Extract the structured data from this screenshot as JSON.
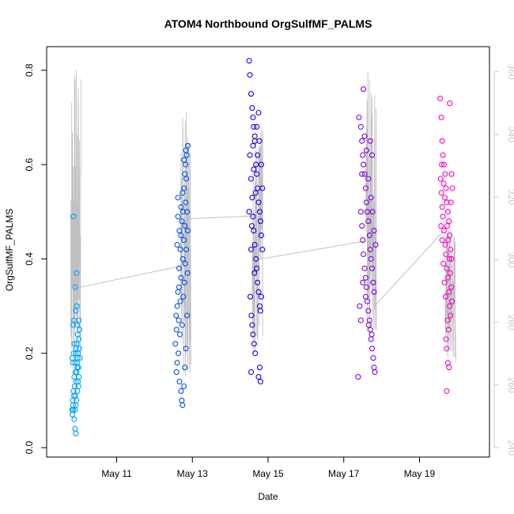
{
  "chart_data": {
    "type": "scatter",
    "title": "ATOM4 Northbound OrgSulfMF_PALMS",
    "xlabel": "Date",
    "ylabel": "OrgSulfMF_PALMS",
    "x_ticks": [
      "May 11",
      "May 13",
      "May 15",
      "May 17",
      "May 19"
    ],
    "x_tick_days": [
      11,
      13,
      15,
      17,
      19
    ],
    "xlim": [
      9.15,
      20.85
    ],
    "ylim": [
      -0.02,
      0.85
    ],
    "y_ticks": [
      0.0,
      0.2,
      0.4,
      0.6,
      0.8
    ],
    "y2_ticks": [
      240,
      260,
      280,
      300,
      320,
      340,
      360
    ],
    "y2lim": [
      237,
      368
    ],
    "series": [
      {
        "flight_day": 9.9,
        "color": "#00a0ff",
        "y_range": [
          0.03,
          0.49
        ],
        "points": [
          [
            9.82,
            0.08
          ],
          [
            9.84,
            0.1
          ],
          [
            9.86,
            0.12
          ],
          [
            9.88,
            0.15
          ],
          [
            9.9,
            0.18
          ],
          [
            9.92,
            0.2
          ],
          [
            9.95,
            0.22
          ],
          [
            9.97,
            0.19
          ],
          [
            9.99,
            0.17
          ],
          [
            10.01,
            0.21
          ],
          [
            9.83,
            0.07
          ],
          [
            9.85,
            0.09
          ],
          [
            9.87,
            0.11
          ],
          [
            9.89,
            0.13
          ],
          [
            9.91,
            0.16
          ],
          [
            9.93,
            0.14
          ],
          [
            9.96,
            0.18
          ],
          [
            9.98,
            0.2
          ],
          [
            10.0,
            0.23
          ],
          [
            10.02,
            0.25
          ],
          [
            9.84,
            0.18
          ],
          [
            9.86,
            0.2
          ],
          [
            9.88,
            0.22
          ],
          [
            9.9,
            0.08
          ],
          [
            9.92,
            0.09
          ],
          [
            9.94,
            0.1
          ],
          [
            9.96,
            0.12
          ],
          [
            9.98,
            0.14
          ],
          [
            10.0,
            0.15
          ],
          [
            9.85,
            0.26
          ],
          [
            9.87,
            0.27
          ],
          [
            9.95,
            0.26
          ],
          [
            10.0,
            0.27
          ],
          [
            9.86,
            0.49
          ],
          [
            9.94,
            0.37
          ],
          [
            9.9,
            0.34
          ],
          [
            9.95,
            0.3
          ],
          [
            9.92,
            0.29
          ],
          [
            9.9,
            0.04
          ],
          [
            9.92,
            0.03
          ],
          [
            9.94,
            0.16
          ],
          [
            9.96,
            0.17
          ],
          [
            9.83,
            0.19
          ],
          [
            10.03,
            0.19
          ],
          [
            9.88,
            0.06
          ],
          [
            9.85,
            0.08
          ],
          [
            9.97,
            0.24
          ],
          [
            9.91,
            0.11
          ],
          [
            9.93,
            0.21
          ],
          [
            9.99,
            0.13
          ]
        ]
      },
      {
        "flight_day": 12.8,
        "color": "#0050f0",
        "y_range": [
          0.09,
          0.64
        ],
        "points": [
          [
            12.55,
            0.22
          ],
          [
            12.58,
            0.25
          ],
          [
            12.6,
            0.3
          ],
          [
            12.62,
            0.33
          ],
          [
            12.65,
            0.38
          ],
          [
            12.68,
            0.42
          ],
          [
            12.7,
            0.45
          ],
          [
            12.72,
            0.48
          ],
          [
            12.75,
            0.5
          ],
          [
            12.78,
            0.55
          ],
          [
            12.8,
            0.58
          ],
          [
            12.82,
            0.6
          ],
          [
            12.85,
            0.62
          ],
          [
            12.88,
            0.64
          ],
          [
            12.58,
            0.16
          ],
          [
            12.6,
            0.18
          ],
          [
            12.63,
            0.2
          ],
          [
            12.66,
            0.14
          ],
          [
            12.7,
            0.12
          ],
          [
            12.72,
            0.1
          ],
          [
            12.74,
            0.09
          ],
          [
            12.78,
            0.13
          ],
          [
            12.8,
            0.17
          ],
          [
            12.83,
            0.21
          ],
          [
            12.86,
            0.28
          ],
          [
            12.6,
            0.43
          ],
          [
            12.62,
            0.53
          ],
          [
            12.65,
            0.34
          ],
          [
            12.68,
            0.31
          ],
          [
            12.7,
            0.36
          ],
          [
            12.75,
            0.4
          ],
          [
            12.78,
            0.44
          ],
          [
            12.8,
            0.47
          ],
          [
            12.82,
            0.52
          ],
          [
            12.84,
            0.57
          ],
          [
            12.86,
            0.5
          ],
          [
            12.88,
            0.46
          ],
          [
            12.57,
            0.28
          ],
          [
            12.64,
            0.27
          ],
          [
            12.67,
            0.24
          ],
          [
            12.73,
            0.26
          ],
          [
            12.76,
            0.32
          ],
          [
            12.79,
            0.35
          ],
          [
            12.81,
            0.39
          ],
          [
            12.84,
            0.42
          ],
          [
            12.87,
            0.37
          ],
          [
            12.62,
            0.49
          ],
          [
            12.66,
            0.46
          ],
          [
            12.7,
            0.51
          ],
          [
            12.74,
            0.54
          ],
          [
            12.78,
            0.61
          ],
          [
            12.83,
            0.63
          ]
        ]
      },
      {
        "flight_day": 14.7,
        "color": "#1800e8",
        "y_range": [
          0.14,
          0.82
        ],
        "points": [
          [
            14.5,
            0.82
          ],
          [
            14.52,
            0.79
          ],
          [
            14.55,
            0.75
          ],
          [
            14.58,
            0.72
          ],
          [
            14.6,
            0.7
          ],
          [
            14.62,
            0.68
          ],
          [
            14.65,
            0.65
          ],
          [
            14.68,
            0.6
          ],
          [
            14.7,
            0.58
          ],
          [
            14.72,
            0.55
          ],
          [
            14.75,
            0.52
          ],
          [
            14.78,
            0.5
          ],
          [
            14.8,
            0.48
          ],
          [
            14.82,
            0.45
          ],
          [
            14.85,
            0.42
          ],
          [
            14.52,
            0.62
          ],
          [
            14.55,
            0.57
          ],
          [
            14.58,
            0.53
          ],
          [
            14.6,
            0.49
          ],
          [
            14.62,
            0.46
          ],
          [
            14.65,
            0.43
          ],
          [
            14.68,
            0.4
          ],
          [
            14.7,
            0.38
          ],
          [
            14.72,
            0.35
          ],
          [
            14.75,
            0.33
          ],
          [
            14.78,
            0.3
          ],
          [
            14.8,
            0.29
          ],
          [
            14.82,
            0.32
          ],
          [
            14.53,
            0.32
          ],
          [
            14.56,
            0.28
          ],
          [
            14.58,
            0.26
          ],
          [
            14.6,
            0.24
          ],
          [
            14.63,
            0.22
          ],
          [
            14.66,
            0.2
          ],
          [
            14.55,
            0.16
          ],
          [
            14.75,
            0.15
          ],
          [
            14.8,
            0.14
          ],
          [
            14.78,
            0.17
          ],
          [
            14.6,
            0.64
          ],
          [
            14.65,
            0.66
          ],
          [
            14.7,
            0.68
          ],
          [
            14.75,
            0.71
          ],
          [
            14.55,
            0.42
          ],
          [
            14.62,
            0.59
          ],
          [
            14.67,
            0.54
          ],
          [
            14.72,
            0.62
          ],
          [
            14.77,
            0.65
          ],
          [
            14.82,
            0.6
          ],
          [
            14.85,
            0.55
          ],
          [
            14.5,
            0.5
          ],
          [
            14.57,
            0.47
          ],
          [
            14.64,
            0.37
          ]
        ]
      },
      {
        "flight_day": 17.7,
        "color": "#8000e8",
        "y_range": [
          0.15,
          0.76
        ],
        "points": [
          [
            17.4,
            0.7
          ],
          [
            17.45,
            0.68
          ],
          [
            17.48,
            0.65
          ],
          [
            17.5,
            0.62
          ],
          [
            17.52,
            0.6
          ],
          [
            17.55,
            0.58
          ],
          [
            17.58,
            0.55
          ],
          [
            17.6,
            0.52
          ],
          [
            17.62,
            0.5
          ],
          [
            17.65,
            0.48
          ],
          [
            17.68,
            0.45
          ],
          [
            17.7,
            0.42
          ],
          [
            17.72,
            0.4
          ],
          [
            17.75,
            0.38
          ],
          [
            17.78,
            0.35
          ],
          [
            17.8,
            0.33
          ],
          [
            17.45,
            0.5
          ],
          [
            17.48,
            0.47
          ],
          [
            17.5,
            0.44
          ],
          [
            17.52,
            0.41
          ],
          [
            17.55,
            0.38
          ],
          [
            17.58,
            0.36
          ],
          [
            17.6,
            0.34
          ],
          [
            17.62,
            0.31
          ],
          [
            17.65,
            0.29
          ],
          [
            17.68,
            0.27
          ],
          [
            17.7,
            0.25
          ],
          [
            17.72,
            0.23
          ],
          [
            17.75,
            0.21
          ],
          [
            17.78,
            0.19
          ],
          [
            17.8,
            0.17
          ],
          [
            17.82,
            0.16
          ],
          [
            17.38,
            0.15
          ],
          [
            17.52,
            0.76
          ],
          [
            17.7,
            0.65
          ],
          [
            17.75,
            0.62
          ],
          [
            17.42,
            0.3
          ],
          [
            17.45,
            0.27
          ],
          [
            17.48,
            0.58
          ],
          [
            17.55,
            0.66
          ],
          [
            17.6,
            0.63
          ],
          [
            17.65,
            0.57
          ],
          [
            17.72,
            0.53
          ],
          [
            17.76,
            0.5
          ],
          [
            17.8,
            0.46
          ],
          [
            17.84,
            0.43
          ],
          [
            17.5,
            0.35
          ],
          [
            17.58,
            0.32
          ],
          [
            17.66,
            0.26
          ],
          [
            17.74,
            0.24
          ]
        ]
      },
      {
        "flight_day": 19.7,
        "color": "#ff00c0",
        "y_range": [
          0.12,
          0.74
        ],
        "points": [
          [
            19.55,
            0.74
          ],
          [
            19.58,
            0.7
          ],
          [
            19.6,
            0.65
          ],
          [
            19.62,
            0.62
          ],
          [
            19.65,
            0.6
          ],
          [
            19.68,
            0.58
          ],
          [
            19.7,
            0.55
          ],
          [
            19.72,
            0.52
          ],
          [
            19.75,
            0.5
          ],
          [
            19.78,
            0.48
          ],
          [
            19.8,
            0.45
          ],
          [
            19.82,
            0.42
          ],
          [
            19.85,
            0.4
          ],
          [
            19.56,
            0.57
          ],
          [
            19.58,
            0.54
          ],
          [
            19.6,
            0.51
          ],
          [
            19.62,
            0.49
          ],
          [
            19.65,
            0.46
          ],
          [
            19.68,
            0.43
          ],
          [
            19.7,
            0.41
          ],
          [
            19.72,
            0.38
          ],
          [
            19.75,
            0.36
          ],
          [
            19.78,
            0.33
          ],
          [
            19.8,
            0.3
          ],
          [
            19.82,
            0.28
          ],
          [
            19.7,
            0.23
          ],
          [
            19.72,
            0.21
          ],
          [
            19.75,
            0.18
          ],
          [
            19.78,
            0.17
          ],
          [
            19.72,
            0.12
          ],
          [
            19.8,
            0.73
          ],
          [
            19.85,
            0.58
          ],
          [
            19.57,
            0.47
          ],
          [
            19.6,
            0.44
          ],
          [
            19.63,
            0.39
          ],
          [
            19.66,
            0.35
          ],
          [
            19.69,
            0.32
          ],
          [
            19.74,
            0.27
          ],
          [
            19.77,
            0.25
          ],
          [
            19.83,
            0.52
          ],
          [
            19.87,
            0.55
          ],
          [
            19.59,
            0.6
          ],
          [
            19.64,
            0.56
          ],
          [
            19.67,
            0.53
          ],
          [
            19.73,
            0.47
          ],
          [
            19.76,
            0.44
          ],
          [
            19.79,
            0.4
          ],
          [
            19.81,
            0.37
          ],
          [
            19.84,
            0.34
          ],
          [
            19.86,
            0.31
          ]
        ]
      }
    ],
    "profile_line": {
      "color": "#c0c0c0",
      "segments": [
        {
          "day": 9.9,
          "range": [
            264,
            362
          ]
        },
        {
          "day": 12.8,
          "range": [
            262,
            348
          ]
        },
        {
          "day": 14.7,
          "range": [
            270,
            343
          ]
        },
        {
          "day": 17.7,
          "range": [
            275,
            361
          ]
        },
        {
          "day": 19.8,
          "range": [
            265,
            311
          ]
        }
      ],
      "connectors": [
        [
          [
            9.95,
            291
          ],
          [
            12.7,
            298
          ]
        ],
        [
          [
            12.8,
            313
          ],
          [
            14.6,
            314
          ]
        ],
        [
          [
            14.7,
            300
          ],
          [
            17.6,
            306
          ]
        ],
        [
          [
            17.8,
            285
          ],
          [
            19.7,
            310
          ]
        ]
      ]
    }
  }
}
